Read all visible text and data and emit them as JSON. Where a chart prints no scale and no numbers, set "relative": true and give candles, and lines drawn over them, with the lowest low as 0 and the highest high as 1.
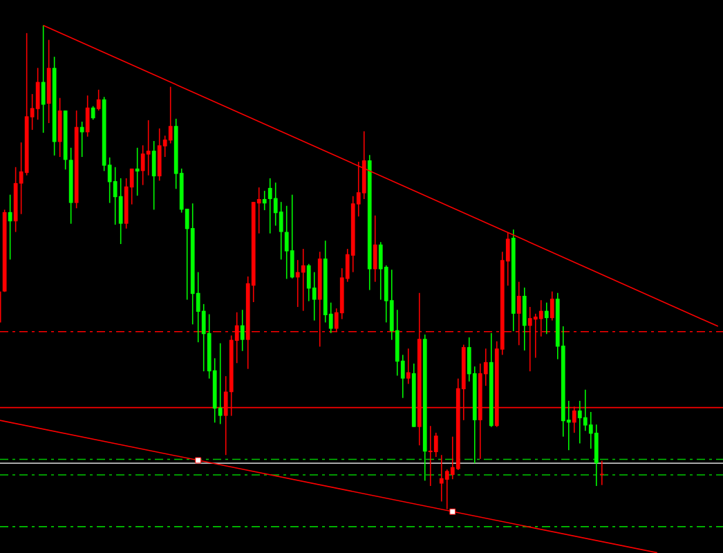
{
  "chart_data": {
    "type": "candlestick",
    "relative": true,
    "categories": [
      null,
      null,
      null,
      null,
      null,
      null,
      null,
      null,
      null,
      null,
      null,
      null,
      null,
      null,
      null,
      null,
      null,
      null,
      null,
      null,
      null,
      null,
      null,
      null,
      null,
      null,
      null,
      null,
      null,
      null,
      null,
      null,
      null,
      null,
      null,
      null,
      null,
      null,
      null,
      null,
      null,
      null,
      null,
      null,
      null,
      null,
      null,
      null,
      null,
      null,
      null,
      null,
      null,
      null,
      null,
      null,
      null,
      null,
      null,
      null,
      null,
      null,
      null,
      null,
      null,
      null,
      null,
      null,
      null,
      null,
      null,
      null,
      null,
      null,
      null,
      null,
      null,
      null,
      null,
      null,
      null,
      null,
      null,
      null,
      null,
      null,
      null,
      null,
      null,
      null,
      null,
      null,
      null,
      null,
      null,
      null,
      null,
      null,
      null,
      null,
      null,
      null,
      null,
      null,
      null,
      null,
      null,
      null,
      null,
      null,
      null,
      null,
      null,
      null,
      null,
      null,
      null,
      null,
      null,
      null,
      null,
      null,
      null,
      null,
      null,
      null,
      null,
      null,
      null,
      null,
      null
    ],
    "ohlc": [
      [
        0.386,
        0.452,
        0.384,
        0.45
      ],
      [
        0.45,
        0.619,
        0.449,
        0.614
      ],
      [
        0.614,
        0.65,
        0.516,
        0.595
      ],
      [
        0.595,
        0.707,
        0.573,
        0.674
      ],
      [
        0.673,
        0.758,
        0.61,
        0.698
      ],
      [
        0.695,
        0.984,
        0.69,
        0.812
      ],
      [
        0.81,
        0.858,
        0.784,
        0.829
      ],
      [
        0.827,
        0.912,
        0.805,
        0.883
      ],
      [
        0.883,
        1,
        0.778,
        0.836
      ],
      [
        0.838,
        0.97,
        0.798,
        0.912
      ],
      [
        0.912,
        0.935,
        0.731,
        0.759
      ],
      [
        0.759,
        0.85,
        0.728,
        0.824
      ],
      [
        0.824,
        0.824,
        0.702,
        0.722
      ],
      [
        0.722,
        0.747,
        0.59,
        0.633
      ],
      [
        0.633,
        0.824,
        0.622,
        0.79
      ],
      [
        0.79,
        0.801,
        0.728,
        0.779
      ],
      [
        0.779,
        0.855,
        0.77,
        0.83
      ],
      [
        0.83,
        0.833,
        0.805,
        0.808
      ],
      [
        0.827,
        0.867,
        0.824,
        0.847
      ],
      [
        0.847,
        0.852,
        0.699,
        0.71
      ],
      [
        0.712,
        0.727,
        0.633,
        0.676
      ],
      [
        0.678,
        0.707,
        0.588,
        0.645
      ],
      [
        0.647,
        0.684,
        0.548,
        0.59
      ],
      [
        0.59,
        0.684,
        0.58,
        0.667
      ],
      [
        0.665,
        0.704,
        0.63,
        0.704
      ],
      [
        0.704,
        0.747,
        0.648,
        0.698
      ],
      [
        0.699,
        0.752,
        0.67,
        0.735
      ],
      [
        0.733,
        0.804,
        0.69,
        0.741
      ],
      [
        0.741,
        0.761,
        0.619,
        0.688
      ],
      [
        0.688,
        0.787,
        0.679,
        0.752
      ],
      [
        0.75,
        0.772,
        0.728,
        0.764
      ],
      [
        0.762,
        0.873,
        0.756,
        0.792
      ],
      [
        0.792,
        0.807,
        0.662,
        0.693
      ],
      [
        0.695,
        0.704,
        0.613,
        0.619
      ],
      [
        0.621,
        0.621,
        0.433,
        0.579
      ],
      [
        0.581,
        0.632,
        0.382,
        0.445
      ],
      [
        0.447,
        0.49,
        0.345,
        0.408
      ],
      [
        0.41,
        0.424,
        0.285,
        0.362
      ],
      [
        0.364,
        0.403,
        0.27,
        0.285
      ],
      [
        0.287,
        0.312,
        0.179,
        0.208
      ],
      [
        0.21,
        0.343,
        0.176,
        0.193
      ],
      [
        0.193,
        0.275,
        0.112,
        0.243
      ],
      [
        0.242,
        0.359,
        0.193,
        0.35
      ],
      [
        0.348,
        0.407,
        0.302,
        0.38
      ],
      [
        0.38,
        0.412,
        0.327,
        0.35
      ],
      [
        0.35,
        0.481,
        0.29,
        0.467
      ],
      [
        0.462,
        0.635,
        0.428,
        0.635
      ],
      [
        0.632,
        0.665,
        0.57,
        0.641
      ],
      [
        0.641,
        0.658,
        0.618,
        0.632
      ],
      [
        0.664,
        0.684,
        0.57,
        0.641
      ],
      [
        0.643,
        0.675,
        0.586,
        0.612
      ],
      [
        0.615,
        0.635,
        0.516,
        0.573
      ],
      [
        0.573,
        0.627,
        0.476,
        0.533
      ],
      [
        0.535,
        0.65,
        0.477,
        0.479
      ],
      [
        0.479,
        0.515,
        0.418,
        0.49
      ],
      [
        0.489,
        0.538,
        0.41,
        0.504
      ],
      [
        0.504,
        0.507,
        0.43,
        0.456
      ],
      [
        0.458,
        0.49,
        0.39,
        0.433
      ],
      [
        0.433,
        0.532,
        0.336,
        0.518
      ],
      [
        0.518,
        0.555,
        0.386,
        0.401
      ],
      [
        0.404,
        0.427,
        0.364,
        0.373
      ],
      [
        0.373,
        0.415,
        0.367,
        0.407
      ],
      [
        0.405,
        0.498,
        0.393,
        0.479
      ],
      [
        0.476,
        0.538,
        0.47,
        0.527
      ],
      [
        0.524,
        0.647,
        0.49,
        0.632
      ],
      [
        0.63,
        0.718,
        0.605,
        0.655
      ],
      [
        0.653,
        0.781,
        0.641,
        0.721
      ],
      [
        0.721,
        0.732,
        0.453,
        0.496
      ],
      [
        0.496,
        0.607,
        0.47,
        0.547
      ],
      [
        0.547,
        0.552,
        0.433,
        0.496
      ],
      [
        0.501,
        0.504,
        0.386,
        0.43
      ],
      [
        0.432,
        0.495,
        0.35,
        0.368
      ],
      [
        0.37,
        0.412,
        0.276,
        0.305
      ],
      [
        0.307,
        0.319,
        0.23,
        0.27
      ],
      [
        0.27,
        0.332,
        0.259,
        0.283
      ],
      [
        0.281,
        0.301,
        0.17,
        0.17
      ],
      [
        0.17,
        0.447,
        0.132,
        0.352
      ],
      [
        0.352,
        0.361,
        0.059,
        0.119
      ],
      [
        0.118,
        0.172,
        0.048,
        0.121
      ],
      [
        0.118,
        0.158,
        0.108,
        0.152
      ],
      [
        0.053,
        0.112,
        0.016,
        0.064
      ],
      [
        0.061,
        0.082,
        0,
        0.079
      ],
      [
        0.071,
        0.15,
        0.062,
        0.087
      ],
      [
        0.083,
        0.27,
        0.081,
        0.25
      ],
      [
        0.248,
        0.34,
        0.184,
        0.335
      ],
      [
        0.335,
        0.355,
        0.264,
        0.279
      ],
      [
        0.281,
        0.295,
        0.095,
        0.184
      ],
      [
        0.184,
        0.301,
        0.104,
        0.281
      ],
      [
        0.279,
        0.332,
        0.255,
        0.304
      ],
      [
        0.304,
        0.364,
        0.17,
        0.172
      ],
      [
        0.172,
        0.347,
        0.17,
        0.332
      ],
      [
        0.33,
        0.532,
        0.319,
        0.515
      ],
      [
        0.512,
        0.571,
        0.462,
        0.559
      ],
      [
        0.561,
        0.578,
        0.368,
        0.404
      ],
      [
        0.404,
        0.47,
        0.339,
        0.441
      ],
      [
        0.441,
        0.458,
        0.328,
        0.379
      ],
      [
        0.379,
        0.418,
        0.285,
        0.395
      ],
      [
        0.392,
        0.404,
        0.313,
        0.398
      ],
      [
        0.393,
        0.432,
        0.357,
        0.41
      ],
      [
        0.41,
        0.427,
        0.362,
        0.395
      ],
      [
        0.395,
        0.45,
        0.39,
        0.435
      ],
      [
        0.435,
        0.447,
        0.31,
        0.336
      ],
      [
        0.338,
        0.378,
        0.15,
        0.182
      ],
      [
        0.185,
        0.224,
        0.122,
        0.179
      ],
      [
        0.179,
        0.212,
        0.158,
        0.204
      ],
      [
        0.204,
        0.224,
        0.136,
        0.188
      ],
      [
        0.19,
        0.247,
        0.162,
        0.173
      ],
      [
        0.175,
        0.201,
        0.125,
        0.156
      ],
      [
        0.158,
        0.175,
        0.048,
        0.095
      ],
      [
        0.071,
        0.1,
        0.05,
        0.073
      ],
      null,
      null,
      null,
      null,
      null,
      null,
      null,
      null,
      null,
      null,
      null,
      null,
      null,
      null,
      null,
      null,
      null,
      null,
      null,
      null,
      null
    ],
    "ref_lines": [
      {
        "axis": "y",
        "value": 0.367,
        "color": "#ff0000",
        "line_style": "dashed"
      },
      {
        "axis": "y",
        "value": 0.21,
        "color": "#ff0000",
        "line_style": "solid"
      },
      {
        "axis": "y",
        "value": 0.103,
        "color": "#00c800",
        "line_style": "dashed"
      },
      {
        "axis": "y",
        "value": 0.095,
        "color": "#c0c0c0",
        "line_style": "solid"
      },
      {
        "axis": "y",
        "value": 0.071,
        "color": "#00c800",
        "line_style": "dashed"
      },
      {
        "axis": "y",
        "value": -0.036,
        "color": "#00c800",
        "line_style": "dashed"
      }
    ],
    "series": [
      {
        "type": "line",
        "color": "#ff0000",
        "values": [
          null,
          null,
          null,
          null,
          null,
          null,
          null,
          null,
          1,
          null,
          null,
          null,
          null,
          null,
          null,
          null,
          null,
          null,
          null,
          null,
          null,
          null,
          null,
          null,
          null,
          null,
          null,
          null,
          null,
          null,
          null,
          null,
          null,
          null,
          null,
          null,
          null,
          null,
          null,
          null,
          null,
          null,
          null,
          null,
          null,
          null,
          null,
          null,
          null,
          null,
          null,
          null,
          null,
          null,
          null,
          null,
          null,
          null,
          null,
          null,
          null,
          null,
          null,
          null,
          null,
          null,
          null,
          null,
          null,
          null,
          null,
          null,
          null,
          null,
          null,
          null,
          null,
          null,
          null,
          null,
          null,
          null,
          null,
          null,
          null,
          null,
          null,
          null,
          null,
          null,
          null,
          null,
          null,
          null,
          null,
          null,
          null,
          null,
          null,
          null,
          null,
          null,
          null,
          null,
          null,
          null,
          null,
          null,
          null,
          null,
          null,
          null,
          null,
          null,
          null,
          null,
          null,
          null,
          null,
          null,
          null,
          null,
          null,
          null,
          null,
          null,
          null,
          null,
          null,
          null,
          0.378
        ]
      },
      {
        "type": "line",
        "color": "#ff0000",
        "values": [
          0.184,
          null,
          null,
          null,
          null,
          null,
          null,
          null,
          null,
          null,
          null,
          null,
          null,
          null,
          null,
          null,
          null,
          null,
          null,
          null,
          null,
          null,
          null,
          null,
          null,
          null,
          null,
          null,
          null,
          null,
          null,
          null,
          null,
          null,
          null,
          null,
          null,
          null,
          null,
          null,
          null,
          null,
          null,
          null,
          null,
          null,
          null,
          null,
          null,
          null,
          null,
          null,
          null,
          null,
          null,
          null,
          null,
          null,
          null,
          null,
          null,
          null,
          null,
          null,
          null,
          null,
          null,
          null,
          null,
          null,
          null,
          null,
          null,
          null,
          null,
          null,
          null,
          null,
          null,
          null,
          null,
          null,
          null,
          null,
          null,
          null,
          null,
          null,
          null,
          null,
          null,
          null,
          null,
          null,
          null,
          null,
          null,
          null,
          null,
          null,
          null,
          null,
          null,
          null,
          null,
          null,
          null,
          null,
          null,
          null,
          null,
          null,
          null,
          null,
          null,
          null,
          null,
          null,
          null,
          -0.09,
          null,
          null,
          null,
          null,
          null,
          null,
          null,
          null,
          null,
          null,
          null
        ]
      },
      {
        "type": "scatter",
        "color": "#ffffff",
        "marker": "square",
        "values": [
          null,
          null,
          null,
          null,
          null,
          null,
          null,
          null,
          null,
          null,
          null,
          null,
          null,
          null,
          null,
          null,
          null,
          null,
          null,
          null,
          null,
          null,
          null,
          null,
          null,
          null,
          null,
          null,
          null,
          null,
          null,
          null,
          null,
          null,
          null,
          null,
          0.101,
          null,
          null,
          null,
          null,
          null,
          null,
          null,
          null,
          null,
          null,
          null,
          null,
          null,
          null,
          null,
          null,
          null,
          null,
          null,
          null,
          null,
          null,
          null,
          null,
          null,
          null,
          null,
          null,
          null,
          null,
          null,
          null,
          null,
          null,
          null,
          null,
          null,
          null,
          null,
          null,
          null,
          null,
          null,
          null,
          null,
          -0.005,
          null,
          null,
          null,
          null,
          null,
          null,
          null,
          null,
          null,
          null,
          null,
          null,
          null,
          null,
          null,
          null,
          null,
          null,
          null,
          null,
          null,
          null,
          null,
          null,
          null,
          null,
          null,
          null,
          null,
          null,
          null,
          null,
          null,
          null,
          null,
          null,
          null,
          null,
          null,
          null,
          null,
          null,
          null,
          null,
          null,
          null,
          null,
          null
        ]
      }
    ]
  }
}
